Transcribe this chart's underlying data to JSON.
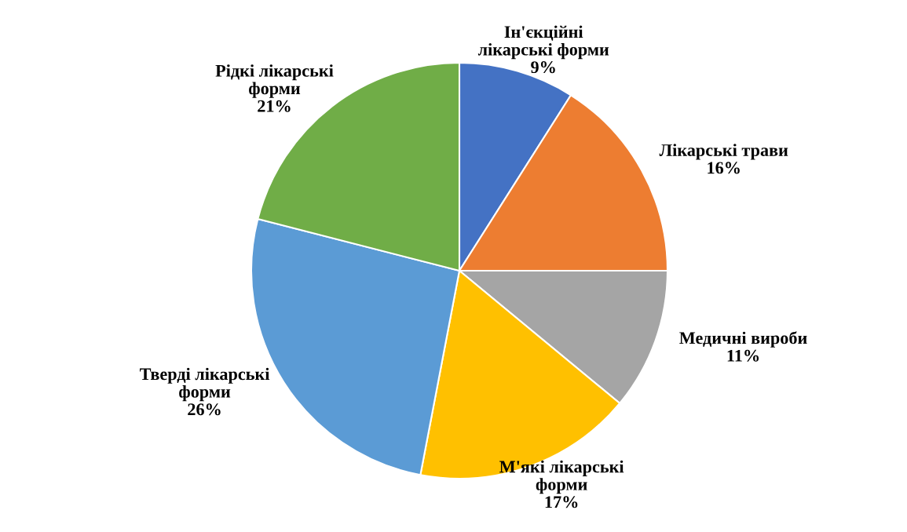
{
  "chart_data": {
    "type": "pie",
    "categories": [
      "Ін'єкційні\nлікарські форми",
      "Лікарські трави",
      "Медичні вироби",
      "М'які лікарські\nформи",
      "Тверді лікарські\nформи",
      "Рідкі лікарські\nформи"
    ],
    "values": [
      9,
      16,
      11,
      17,
      26,
      21
    ],
    "value_labels": [
      "9%",
      "16%",
      "11%",
      "17%",
      "26%",
      "21%"
    ],
    "colors": [
      "#4472c4",
      "#ed7d31",
      "#a5a5a5",
      "#ffc000",
      "#5b9bd5",
      "#70ad47"
    ],
    "legend": false
  }
}
